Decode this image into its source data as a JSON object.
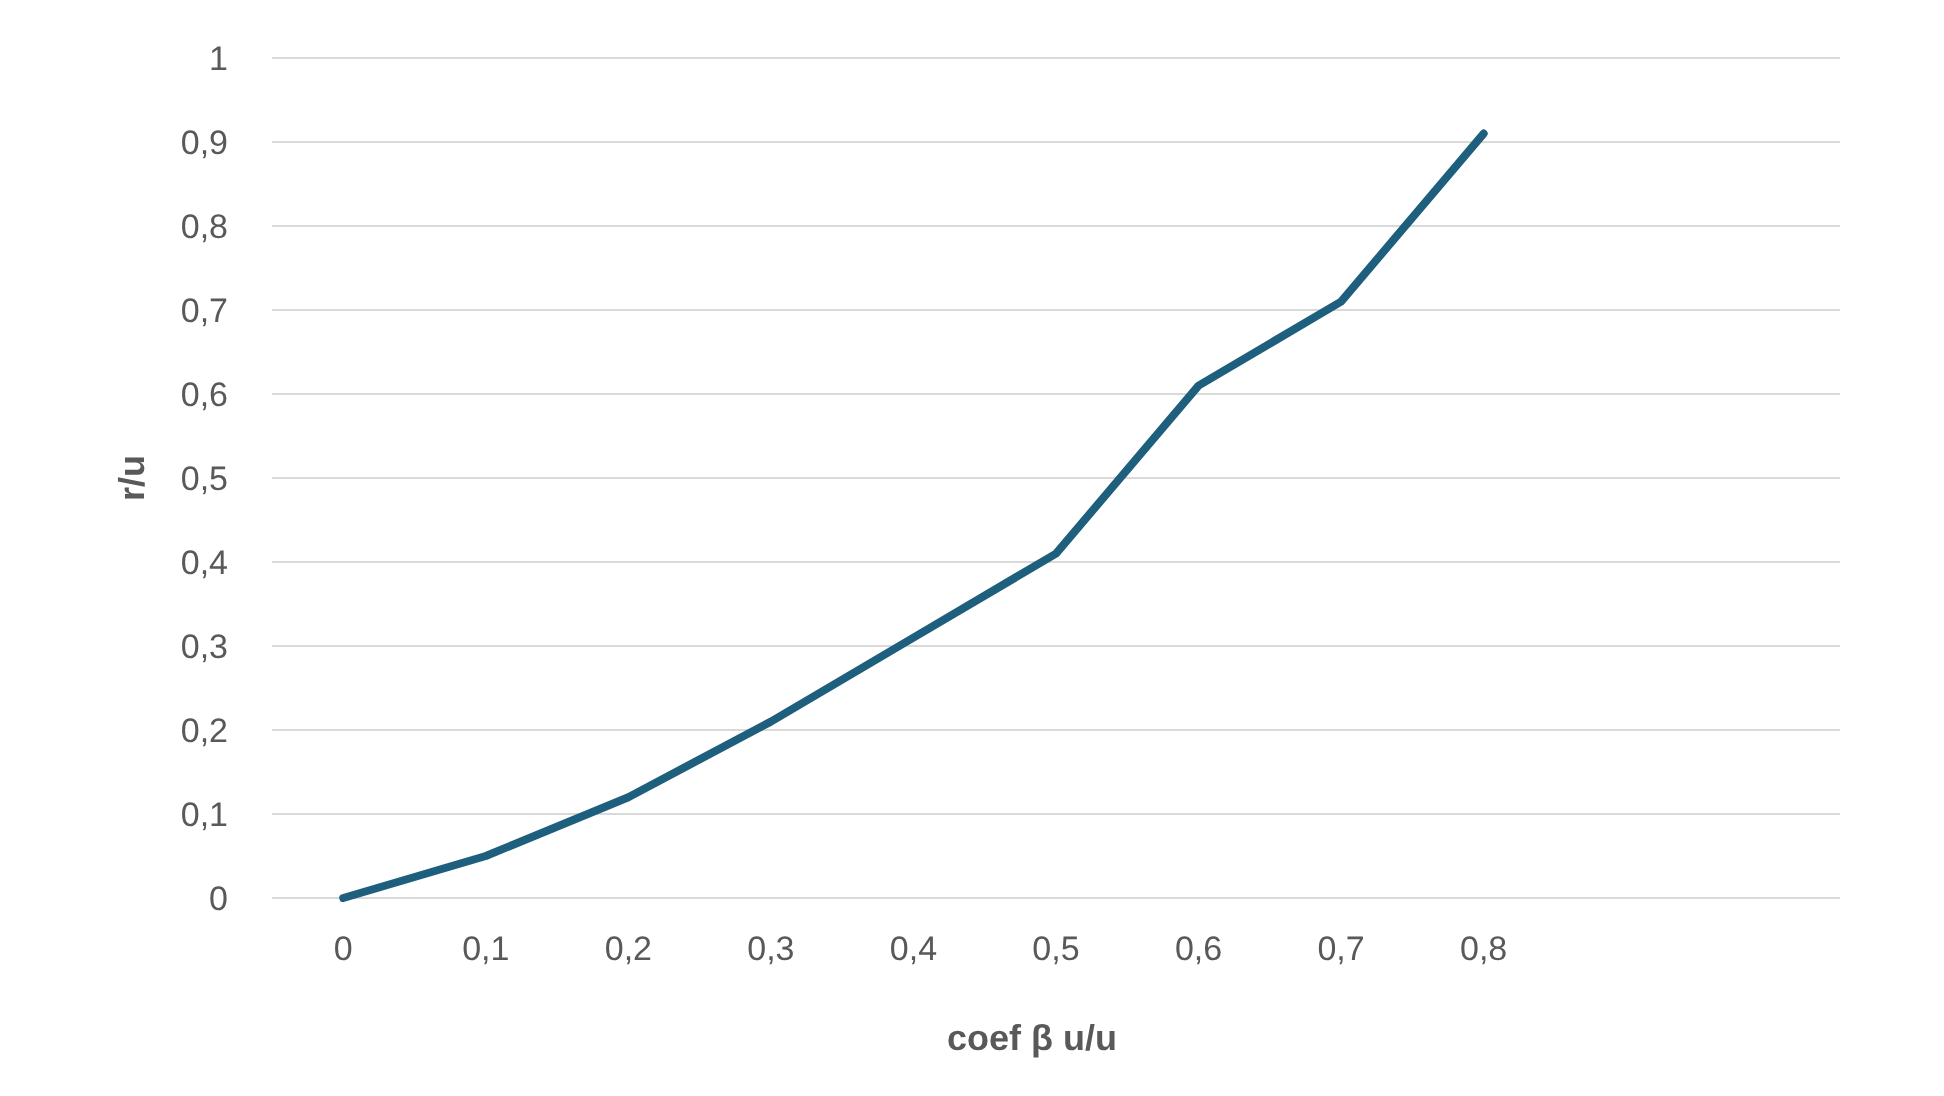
{
  "chart_data": {
    "type": "line",
    "xlabel": "coef β u/u",
    "ylabel": "r/u",
    "categories": [
      "0",
      "0,1",
      "0,2",
      "0,3",
      "0,4",
      "0,5",
      "0,6",
      "0,7",
      "0,8",
      null,
      null
    ],
    "series": [
      {
        "color": "#1d5f7c",
        "values": [
          0,
          0.05,
          0.12,
          0.21,
          0.31,
          0.41,
          0.61,
          0.71,
          0.91,
          null,
          null
        ]
      }
    ],
    "ylim": [
      0,
      1
    ],
    "yticks": [
      0,
      {
        "value": 0.1,
        "label": "0,1"
      },
      {
        "value": 0.2,
        "label": "0,2"
      },
      {
        "value": 0.3,
        "label": "0,3"
      },
      {
        "value": 0.4,
        "label": "0,4"
      },
      {
        "value": 0.5,
        "label": "0,5"
      },
      {
        "value": 0.6,
        "label": "0,6"
      },
      {
        "value": 0.7,
        "label": "0,7"
      },
      {
        "value": 0.8,
        "label": "0,8"
      },
      {
        "value": 0.9,
        "label": "0,9"
      },
      1
    ],
    "grid": "y",
    "marker": "none",
    "line_style": "solid"
  }
}
